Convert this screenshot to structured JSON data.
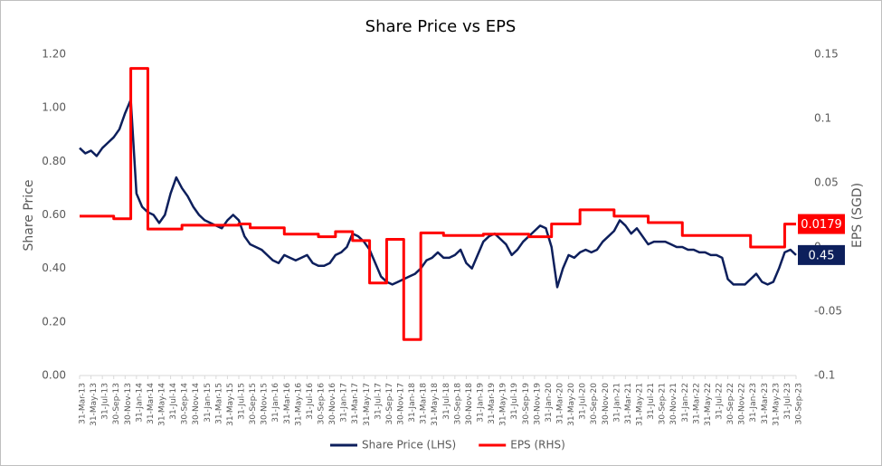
{
  "chart_data": {
    "type": "line",
    "title": "Share Price vs EPS",
    "y_label": "Share Price",
    "y2_label": "EPS (SGD)",
    "categories": [
      "31-Mar-13",
      null,
      "31-May-13",
      null,
      "31-Jul-13",
      null,
      "30-Sep-13",
      null,
      "30-Nov-13",
      null,
      "31-Jan-14",
      null,
      "31-Mar-14",
      null,
      "31-May-14",
      null,
      "31-Jul-14",
      null,
      "30-Sep-14",
      null,
      "30-Nov-14",
      null,
      "31-Jan-15",
      null,
      "31-Mar-15",
      null,
      "31-May-15",
      null,
      "31-Jul-15",
      null,
      "30-Sep-15",
      null,
      "30-Nov-15",
      null,
      "31-Jan-16",
      null,
      "31-Mar-16",
      null,
      "31-May-16",
      null,
      "31-Jul-16",
      null,
      "30-Sep-16",
      null,
      "30-Nov-16",
      null,
      "31-Jan-17",
      null,
      "31-Mar-17",
      null,
      "31-May-17",
      null,
      "31-Jul-17",
      null,
      "30-Sep-17",
      null,
      "30-Nov-17",
      null,
      "31-Jan-18",
      null,
      "31-Mar-18",
      null,
      "31-May-18",
      null,
      "31-Jul-18",
      null,
      "30-Sep-18",
      null,
      "30-Nov-18",
      null,
      "31-Jan-19",
      null,
      "31-Mar-19",
      null,
      "31-May-19",
      null,
      "31-Jul-19",
      null,
      "30-Sep-19",
      null,
      "30-Nov-19",
      null,
      "31-Jan-20",
      null,
      "31-Mar-20",
      null,
      "31-May-20",
      null,
      "31-Jul-20",
      null,
      "30-Sep-20",
      null,
      "30-Nov-20",
      null,
      "31-Jan-21",
      null,
      "31-Mar-21",
      null,
      "31-May-21",
      null,
      "31-Jul-21",
      null,
      "30-Sep-21",
      null,
      "30-Nov-21",
      null,
      "31-Jan-22",
      null,
      "31-Mar-22",
      null,
      "31-May-22",
      null,
      "31-Jul-22",
      null,
      "30-Sep-22",
      null,
      "30-Nov-22",
      null,
      "31-Jan-23",
      null,
      "31-Mar-23",
      null,
      "31-May-23",
      null,
      "31-Jul-23",
      null,
      "30-Sep-23"
    ],
    "series": [
      {
        "name": "Share Price (LHS)",
        "color": "#0d1f5c",
        "axis": "y",
        "values": [
          0.85,
          0.83,
          0.84,
          0.82,
          0.85,
          0.87,
          0.89,
          0.92,
          0.98,
          1.03,
          0.68,
          0.63,
          0.61,
          0.6,
          0.57,
          0.6,
          0.68,
          0.74,
          0.7,
          0.67,
          0.63,
          0.6,
          0.58,
          0.57,
          0.56,
          0.55,
          0.58,
          0.6,
          0.58,
          0.52,
          0.49,
          0.48,
          0.47,
          0.45,
          0.43,
          0.42,
          0.45,
          0.44,
          0.43,
          0.44,
          0.45,
          0.42,
          0.41,
          0.41,
          0.42,
          0.45,
          0.46,
          0.48,
          0.53,
          0.52,
          0.5,
          0.47,
          0.42,
          0.37,
          0.35,
          0.34,
          0.35,
          0.36,
          0.37,
          0.38,
          0.4,
          0.43,
          0.44,
          0.46,
          0.44,
          0.44,
          0.45,
          0.47,
          0.42,
          0.4,
          0.45,
          0.5,
          0.52,
          0.53,
          0.51,
          0.49,
          0.45,
          0.47,
          0.5,
          0.52,
          0.54,
          0.56,
          0.55,
          0.48,
          0.33,
          0.4,
          0.45,
          0.44,
          0.46,
          0.47,
          0.46,
          0.47,
          0.5,
          0.52,
          0.54,
          0.58,
          0.56,
          0.53,
          0.55,
          0.52,
          0.49,
          0.5,
          0.5,
          0.5,
          0.49,
          0.48,
          0.48,
          0.47,
          0.47,
          0.46,
          0.46,
          0.45,
          0.45,
          0.44,
          0.36,
          0.34,
          0.34,
          0.34,
          0.36,
          0.38,
          0.35,
          0.34,
          0.35,
          0.4,
          0.46,
          0.47,
          0.45
        ]
      },
      {
        "name": "EPS (RHS)",
        "color": "#ff0000",
        "axis": "y2",
        "step": true,
        "values": [
          0.024,
          0.024,
          0.024,
          0.024,
          0.024,
          0.024,
          0.022,
          0.022,
          0.022,
          0.139,
          0.139,
          0.139,
          0.014,
          0.014,
          0.014,
          0.014,
          0.014,
          0.014,
          0.017,
          0.017,
          0.017,
          0.017,
          0.017,
          0.017,
          0.017,
          0.017,
          0.017,
          0.017,
          0.018,
          0.018,
          0.015,
          0.015,
          0.015,
          0.015,
          0.015,
          0.015,
          0.01,
          0.01,
          0.01,
          0.01,
          0.01,
          0.01,
          0.008,
          0.008,
          0.008,
          0.012,
          0.012,
          0.012,
          0.005,
          0.005,
          0.005,
          -0.028,
          -0.028,
          -0.028,
          0.006,
          0.006,
          0.006,
          -0.072,
          -0.072,
          -0.072,
          0.011,
          0.011,
          0.011,
          0.011,
          0.009,
          0.009,
          0.009,
          0.009,
          0.009,
          0.009,
          0.009,
          0.01,
          0.01,
          0.01,
          0.01,
          0.01,
          0.01,
          0.01,
          0.01,
          0.008,
          0.008,
          0.008,
          0.008,
          0.018,
          0.018,
          0.018,
          0.018,
          0.018,
          0.029,
          0.029,
          0.029,
          0.029,
          0.029,
          0.029,
          0.024,
          0.024,
          0.024,
          0.024,
          0.024,
          0.024,
          0.019,
          0.019,
          0.019,
          0.019,
          0.019,
          0.019,
          0.009,
          0.009,
          0.009,
          0.009,
          0.009,
          0.009,
          0.009,
          0.009,
          0.009,
          0.009,
          0.009,
          0.009,
          0,
          0,
          0,
          0,
          0,
          0,
          0.0179,
          0.0179,
          0.0179
        ]
      }
    ],
    "ylim": [
      0,
      1.2
    ],
    "yticks": [
      {
        "value": 0,
        "label": "0.00"
      },
      {
        "value": 0.2,
        "label": "0.20"
      },
      {
        "value": 0.4,
        "label": "0.40"
      },
      {
        "value": 0.6,
        "label": "0.60"
      },
      {
        "value": 0.8,
        "label": "0.80"
      },
      {
        "value": 1,
        "label": "1.00"
      },
      {
        "value": 1.2,
        "label": "1.20"
      }
    ],
    "y2lim": [
      -0.1,
      0.15
    ],
    "y2ticks": [
      -0.1,
      -0.05,
      0,
      0.05,
      0.1,
      0.15
    ],
    "legend": "bottom",
    "grid": false
  }
}
